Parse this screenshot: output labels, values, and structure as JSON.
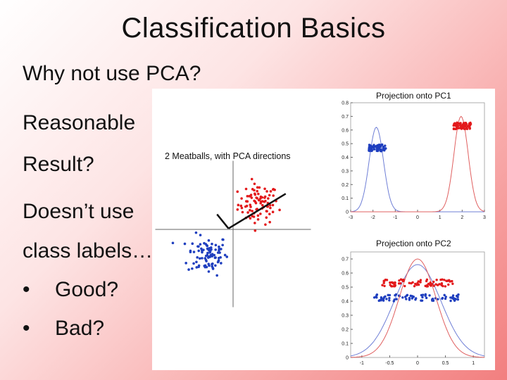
{
  "slide": {
    "title": "Classification Basics",
    "subtitle": "Why not use PCA?",
    "lines": [
      "Reasonable",
      "Result?",
      "Doesn’t use",
      "class labels…"
    ],
    "bullets": [
      "Good?",
      "Bad?"
    ],
    "bullet_glyph": "•"
  },
  "colors": {
    "red": "#e31a1c",
    "blue": "#1f3fbf",
    "red_curve": "#e06060",
    "blue_curve": "#6f7fd6"
  },
  "chart_data": [
    {
      "type": "scatter",
      "title": "2 Meatballs, with PCA directions",
      "series": [
        {
          "name": "",
          "color": "#e31a1c",
          "center": [
            0.55,
            0.55
          ],
          "spread": [
            0.22,
            0.22
          ],
          "count": 90
        },
        {
          "name": "",
          "color": "#1f3fbf",
          "center": [
            -0.55,
            -0.55
          ],
          "spread": [
            0.22,
            0.22
          ],
          "count": 90
        }
      ],
      "pca_directions": true
    },
    {
      "type": "line",
      "title": "Projection onto PC1",
      "xticks": [
        "-3",
        "-2",
        "-1",
        "0",
        "1",
        "2",
        "3"
      ],
      "yticks": [
        "0",
        "0.1",
        "0.2",
        "0.3",
        "0.4",
        "0.5",
        "0.6",
        "0.7",
        "0.8"
      ],
      "xlim": [
        -3,
        3
      ],
      "ylim": [
        0,
        0.8
      ],
      "series": [
        {
          "name": "",
          "color": "#6f7fd6",
          "curve": {
            "mu": -1.85,
            "sigma": 0.32,
            "peak": 0.62
          },
          "points": {
            "center": -1.8,
            "spread": 0.3,
            "y": 0.47,
            "count": 70
          }
        },
        {
          "name": "",
          "color": "#e06060",
          "curve": {
            "mu": 1.95,
            "sigma": 0.32,
            "peak": 0.7
          },
          "points": {
            "center": 2.0,
            "spread": 0.3,
            "y": 0.63,
            "count": 70
          }
        }
      ]
    },
    {
      "type": "line",
      "title": "Projection onto PC2",
      "xticks": [
        "-1",
        "-0.5",
        "0",
        "0.5",
        "1"
      ],
      "yticks": [
        "0",
        "0.1",
        "0.2",
        "0.3",
        "0.4",
        "0.5",
        "0.6",
        "0.7"
      ],
      "xlim": [
        -1.2,
        1.2
      ],
      "ylim": [
        0,
        0.75
      ],
      "series": [
        {
          "name": "",
          "color": "#6f7fd6",
          "curve": {
            "mu": 0.0,
            "sigma": 0.42,
            "peak": 0.66
          },
          "points": {
            "center": 0.0,
            "spread": 0.6,
            "y": 0.425,
            "count": 80
          }
        },
        {
          "name": "",
          "color": "#e06060",
          "curve": {
            "mu": 0.0,
            "sigma": 0.33,
            "peak": 0.7
          },
          "points": {
            "center": 0.0,
            "spread": 0.5,
            "y": 0.53,
            "count": 80
          }
        }
      ]
    }
  ]
}
